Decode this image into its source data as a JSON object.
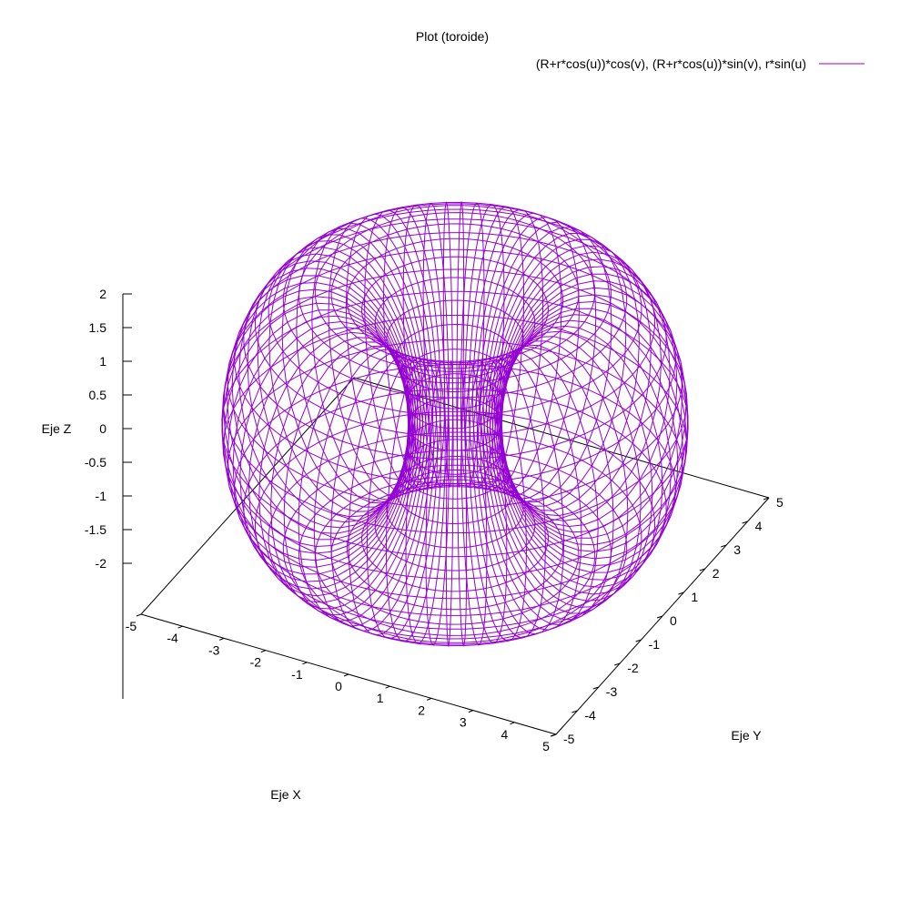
{
  "chart_data": {
    "type": "surface-3d",
    "title": "Plot (toroide)",
    "legend": {
      "position": "top-right",
      "entries": [
        {
          "label": "(R+r*cos(u))*cos(v), (R+r*cos(u))*sin(v), r*sin(u)",
          "color": "#9400d3"
        }
      ]
    },
    "axes": {
      "x": {
        "label": "Eje X",
        "range": [
          -5,
          5
        ],
        "ticks": [
          "-5",
          "-4",
          "-3",
          "-2",
          "-1",
          "0",
          "1",
          "2",
          "3",
          "4",
          "5"
        ]
      },
      "y": {
        "label": "Eje Y",
        "range": [
          -5,
          5
        ],
        "ticks": [
          "-5",
          "-4",
          "-3",
          "-2",
          "-1",
          "0",
          "1",
          "2",
          "3",
          "4",
          "5"
        ]
      },
      "z": {
        "label": "Eje Z",
        "range": [
          -2,
          2
        ],
        "ticks": [
          "2",
          "1.5",
          "1",
          "0.5",
          "0",
          "-0.5",
          "-1",
          "-1.5",
          "-2"
        ]
      }
    },
    "surface": {
      "x_expr": "(R+r*cos(u))*cos(v)",
      "y_expr": "(R+r*cos(u))*sin(v)",
      "z_expr": "r*sin(u)",
      "R": 3,
      "r": 2,
      "u_range": [
        0,
        6.2832
      ],
      "v_range": [
        0,
        6.2832
      ],
      "u_lines": 36,
      "v_lines": 72,
      "style": "wireframe",
      "color": "#9400d3"
    },
    "grid": false
  }
}
